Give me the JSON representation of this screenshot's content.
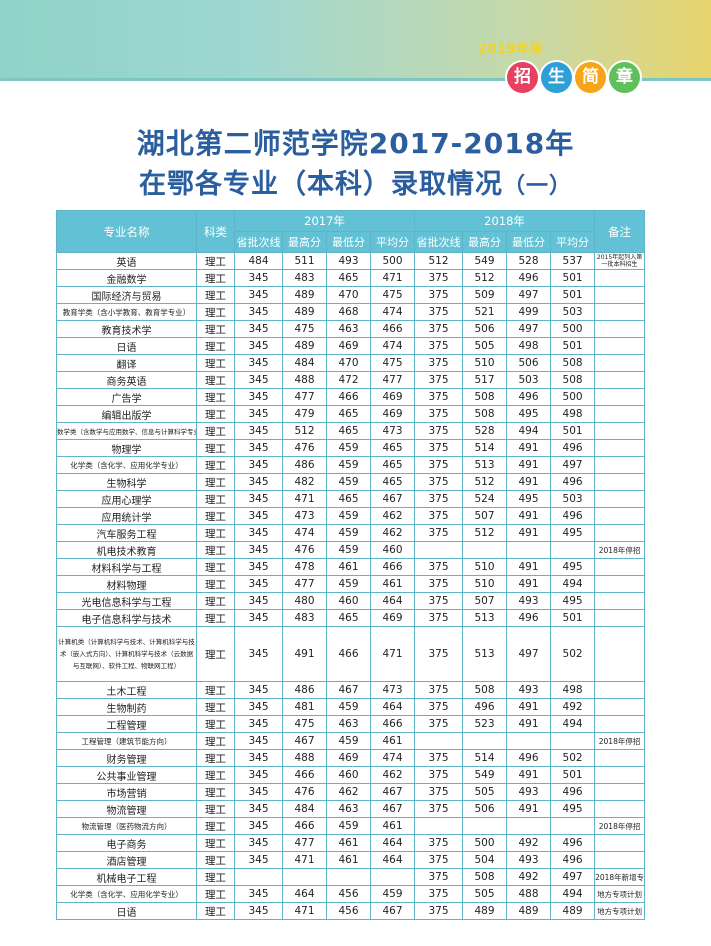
{
  "header": {
    "year_label": "2019年版",
    "badges": [
      {
        "char": "招",
        "color": "#e84060"
      },
      {
        "char": "生",
        "color": "#2f9fd8"
      },
      {
        "char": "简",
        "color": "#f6a51b"
      },
      {
        "char": "章",
        "color": "#5fbf5a"
      }
    ]
  },
  "title_line1": "湖北第二师范学院2017-2018年",
  "title_line2_main": "在鄂各专业（本科）录取情况",
  "title_line2_suffix": "（一）",
  "table": {
    "col_major": "专业名称",
    "col_category": "科类",
    "year_2017": "2017年",
    "year_2018": "2018年",
    "col_note": "备注",
    "sub_headers_2017": [
      "省批次线",
      "最高分",
      "最低分",
      "平均分"
    ],
    "sub_headers_2018": [
      "省批次线",
      "最高分",
      "最低分",
      "平均分"
    ],
    "rows": [
      {
        "name": "英语",
        "cat": "理工",
        "v": [
          "484",
          "511",
          "493",
          "500",
          "512",
          "549",
          "528",
          "537"
        ],
        "note": "2015年起列入第一批本科招生"
      },
      {
        "name": "金融数学",
        "cat": "理工",
        "v": [
          "345",
          "483",
          "465",
          "471",
          "375",
          "512",
          "496",
          "501"
        ],
        "note": ""
      },
      {
        "name": "国际经济与贸易",
        "cat": "理工",
        "v": [
          "345",
          "489",
          "470",
          "475",
          "375",
          "509",
          "497",
          "501"
        ],
        "note": ""
      },
      {
        "name": "教育学类（含小学教育、教育学专业）",
        "cat": "理工",
        "v": [
          "345",
          "489",
          "468",
          "474",
          "375",
          "521",
          "499",
          "503"
        ],
        "note": ""
      },
      {
        "name": "教育技术学",
        "cat": "理工",
        "v": [
          "345",
          "475",
          "463",
          "466",
          "375",
          "506",
          "497",
          "500"
        ],
        "note": ""
      },
      {
        "name": "日语",
        "cat": "理工",
        "v": [
          "345",
          "489",
          "469",
          "474",
          "375",
          "505",
          "498",
          "501"
        ],
        "note": ""
      },
      {
        "name": "翻译",
        "cat": "理工",
        "v": [
          "345",
          "484",
          "470",
          "475",
          "375",
          "510",
          "506",
          "508"
        ],
        "note": ""
      },
      {
        "name": "商务英语",
        "cat": "理工",
        "v": [
          "345",
          "488",
          "472",
          "477",
          "375",
          "517",
          "503",
          "508"
        ],
        "note": ""
      },
      {
        "name": "广告学",
        "cat": "理工",
        "v": [
          "345",
          "477",
          "466",
          "469",
          "375",
          "508",
          "496",
          "500"
        ],
        "note": ""
      },
      {
        "name": "编辑出版学",
        "cat": "理工",
        "v": [
          "345",
          "479",
          "465",
          "469",
          "375",
          "508",
          "495",
          "498"
        ],
        "note": ""
      },
      {
        "name": "数学类（含数学与应用数学、信息与计算科学专业）",
        "cat": "理工",
        "v": [
          "345",
          "512",
          "465",
          "473",
          "375",
          "528",
          "494",
          "501"
        ],
        "note": ""
      },
      {
        "name": "物理学",
        "cat": "理工",
        "v": [
          "345",
          "476",
          "459",
          "465",
          "375",
          "514",
          "491",
          "496"
        ],
        "note": ""
      },
      {
        "name": "化学类（含化学、应用化学专业）",
        "cat": "理工",
        "v": [
          "345",
          "486",
          "459",
          "465",
          "375",
          "513",
          "491",
          "497"
        ],
        "note": ""
      },
      {
        "name": "生物科学",
        "cat": "理工",
        "v": [
          "345",
          "482",
          "459",
          "465",
          "375",
          "512",
          "491",
          "496"
        ],
        "note": ""
      },
      {
        "name": "应用心理学",
        "cat": "理工",
        "v": [
          "345",
          "471",
          "465",
          "467",
          "375",
          "524",
          "495",
          "503"
        ],
        "note": ""
      },
      {
        "name": "应用统计学",
        "cat": "理工",
        "v": [
          "345",
          "473",
          "459",
          "462",
          "375",
          "507",
          "491",
          "496"
        ],
        "note": ""
      },
      {
        "name": "汽车服务工程",
        "cat": "理工",
        "v": [
          "345",
          "474",
          "459",
          "462",
          "375",
          "512",
          "491",
          "495"
        ],
        "note": ""
      },
      {
        "name": "机电技术教育",
        "cat": "理工",
        "v": [
          "345",
          "476",
          "459",
          "460",
          "",
          "",
          "",
          ""
        ],
        "note": "2018年停招"
      },
      {
        "name": "材料科学与工程",
        "cat": "理工",
        "v": [
          "345",
          "478",
          "461",
          "466",
          "375",
          "510",
          "491",
          "495"
        ],
        "note": ""
      },
      {
        "name": "材料物理",
        "cat": "理工",
        "v": [
          "345",
          "477",
          "459",
          "461",
          "375",
          "510",
          "491",
          "494"
        ],
        "note": ""
      },
      {
        "name": "光电信息科学与工程",
        "cat": "理工",
        "v": [
          "345",
          "480",
          "460",
          "464",
          "375",
          "507",
          "493",
          "495"
        ],
        "note": ""
      },
      {
        "name": "电子信息科学与技术",
        "cat": "理工",
        "v": [
          "345",
          "483",
          "465",
          "469",
          "375",
          "513",
          "496",
          "501"
        ],
        "note": ""
      },
      {
        "name": "计算机类（计算机科学与技术、计算机科学与技术（嵌入式方向）、计算机科学与技术（云数据与互联网）、软件工程、物联网工程）",
        "cat": "理工",
        "v": [
          "345",
          "491",
          "466",
          "471",
          "375",
          "513",
          "497",
          "502"
        ],
        "note": "",
        "tall": true
      },
      {
        "name": "土木工程",
        "cat": "理工",
        "v": [
          "345",
          "486",
          "467",
          "473",
          "375",
          "508",
          "493",
          "498"
        ],
        "note": ""
      },
      {
        "name": "生物制药",
        "cat": "理工",
        "v": [
          "345",
          "481",
          "459",
          "464",
          "375",
          "496",
          "491",
          "492"
        ],
        "note": ""
      },
      {
        "name": "工程管理",
        "cat": "理工",
        "v": [
          "345",
          "475",
          "463",
          "466",
          "375",
          "523",
          "491",
          "494"
        ],
        "note": ""
      },
      {
        "name": "工程管理（建筑节能方向）",
        "cat": "理工",
        "v": [
          "345",
          "467",
          "459",
          "461",
          "",
          "",
          "",
          ""
        ],
        "note": "2018年停招"
      },
      {
        "name": "财务管理",
        "cat": "理工",
        "v": [
          "345",
          "488",
          "469",
          "474",
          "375",
          "514",
          "496",
          "502"
        ],
        "note": ""
      },
      {
        "name": "公共事业管理",
        "cat": "理工",
        "v": [
          "345",
          "466",
          "460",
          "462",
          "375",
          "549",
          "491",
          "501"
        ],
        "note": ""
      },
      {
        "name": "市场营销",
        "cat": "理工",
        "v": [
          "345",
          "476",
          "462",
          "467",
          "375",
          "505",
          "493",
          "496"
        ],
        "note": ""
      },
      {
        "name": "物流管理",
        "cat": "理工",
        "v": [
          "345",
          "484",
          "463",
          "467",
          "375",
          "506",
          "491",
          "495"
        ],
        "note": ""
      },
      {
        "name": "物流管理（医药物流方向）",
        "cat": "理工",
        "v": [
          "345",
          "466",
          "459",
          "461",
          "",
          "",
          "",
          ""
        ],
        "note": "2018年停招"
      },
      {
        "name": "电子商务",
        "cat": "理工",
        "v": [
          "345",
          "477",
          "461",
          "464",
          "375",
          "500",
          "492",
          "496"
        ],
        "note": ""
      },
      {
        "name": "酒店管理",
        "cat": "理工",
        "v": [
          "345",
          "471",
          "461",
          "464",
          "375",
          "504",
          "493",
          "496"
        ],
        "note": ""
      },
      {
        "name": "机械电子工程",
        "cat": "理工",
        "v": [
          "",
          "",
          "",
          "",
          "375",
          "508",
          "492",
          "497"
        ],
        "note": "2018年新增专业"
      },
      {
        "name": "化学类（含化学、应用化学专业）",
        "cat": "理工",
        "v": [
          "345",
          "464",
          "456",
          "459",
          "375",
          "505",
          "488",
          "494"
        ],
        "note": "地方专项计划"
      },
      {
        "name": "日语",
        "cat": "理工",
        "v": [
          "345",
          "471",
          "456",
          "467",
          "375",
          "489",
          "489",
          "489"
        ],
        "note": "地方专项计划"
      }
    ]
  }
}
